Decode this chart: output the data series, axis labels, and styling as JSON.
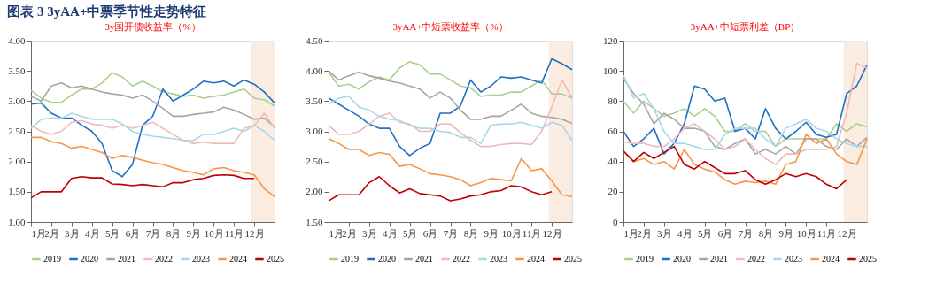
{
  "chart_data": [
    {
      "type": "other",
      "title": "图表 3  3yAA+中票季节性走势特征"
    },
    {
      "type": "line",
      "title": "3y国开债收益率（%）",
      "legend": "bottom",
      "grid": false,
      "x": [
        1,
        1.5,
        2,
        2.5,
        3,
        3.5,
        4,
        4.5,
        5,
        5.5,
        6,
        6.5,
        7,
        7.5,
        8,
        8.5,
        9,
        9.5,
        10,
        10.5,
        11,
        11.5,
        12,
        12.5,
        13
      ],
      "xlim": [
        1,
        13
      ],
      "xticks": [
        {
          "value": 1,
          "label": "1月"
        },
        {
          "value": 2,
          "label": "2月"
        },
        {
          "value": 3,
          "label": "3月"
        },
        {
          "value": 4,
          "label": "4月"
        },
        {
          "value": 5,
          "label": "5月"
        },
        {
          "value": 6,
          "label": "6月"
        },
        {
          "value": 7,
          "label": "7月"
        },
        {
          "value": 8,
          "label": "8月"
        },
        {
          "value": 9,
          "label": "9月"
        },
        {
          "value": 10,
          "label": "10月"
        },
        {
          "value": 11,
          "label": "11月"
        },
        {
          "value": 12,
          "label": "12月"
        }
      ],
      "ylim": [
        1,
        4
      ],
      "yticks": [
        {
          "value": 1,
          "label": "1.00"
        },
        {
          "value": 1.5,
          "label": "1.50"
        },
        {
          "value": 2,
          "label": "2.00"
        },
        {
          "value": 2.5,
          "label": "2.50"
        },
        {
          "value": 3,
          "label": "3.00"
        },
        {
          "value": 3.5,
          "label": "3.50"
        },
        {
          "value": 4,
          "label": "4.00"
        }
      ],
      "bands": [
        {
          "axis": "x",
          "from": 11.85,
          "to": 13,
          "color": "#fbeadf"
        }
      ],
      "series": [
        {
          "name": "2019",
          "color": "#a9d18e",
          "values": [
            3.18,
            3.05,
            2.98,
            2.98,
            3.1,
            3.2,
            3.2,
            3.3,
            3.47,
            3.4,
            3.25,
            3.33,
            3.25,
            3.15,
            3.12,
            3.08,
            3.1,
            3.05,
            3.08,
            3.1,
            3.15,
            3.2,
            3.05,
            3.02,
            2.92
          ]
        },
        {
          "name": "2020",
          "color": "#1f6fc5",
          "values": [
            2.95,
            2.97,
            2.8,
            2.72,
            2.72,
            2.6,
            2.5,
            2.3,
            1.85,
            1.75,
            1.95,
            2.6,
            2.75,
            3.2,
            3.0,
            3.1,
            3.2,
            3.33,
            3.3,
            3.33,
            3.25,
            3.35,
            3.28,
            3.15,
            2.97
          ]
        },
        {
          "name": "2021",
          "color": "#a5a5a5",
          "values": [
            3.08,
            3.0,
            3.25,
            3.3,
            3.22,
            3.25,
            3.2,
            3.15,
            3.12,
            3.1,
            3.05,
            3.1,
            3.0,
            2.88,
            2.75,
            2.75,
            2.78,
            2.8,
            2.82,
            2.9,
            2.85,
            2.78,
            2.7,
            2.72,
            2.57
          ]
        },
        {
          "name": "2022",
          "color": "#f0b8b8",
          "values": [
            2.6,
            2.5,
            2.45,
            2.5,
            2.65,
            2.68,
            2.62,
            2.6,
            2.55,
            2.6,
            2.55,
            2.6,
            2.65,
            2.55,
            2.45,
            2.35,
            2.3,
            2.32,
            2.3,
            2.3,
            2.3,
            2.55,
            2.6,
            2.8,
            2.55
          ]
        },
        {
          "name": "2023",
          "color": "#a8d8e8",
          "values": [
            2.55,
            2.7,
            2.72,
            2.72,
            2.8,
            2.75,
            2.7,
            2.7,
            2.7,
            2.62,
            2.5,
            2.45,
            2.42,
            2.4,
            2.38,
            2.35,
            2.35,
            2.45,
            2.45,
            2.5,
            2.55,
            2.5,
            2.6,
            2.5,
            2.35
          ]
        },
        {
          "name": "2024",
          "color": "#f79646",
          "values": [
            2.4,
            2.4,
            2.33,
            2.3,
            2.22,
            2.25,
            2.2,
            2.15,
            2.05,
            2.1,
            2.07,
            2.02,
            1.98,
            1.95,
            1.9,
            1.85,
            1.82,
            1.78,
            1.88,
            1.9,
            1.85,
            1.82,
            1.78,
            1.55,
            1.42
          ]
        },
        {
          "name": "2025",
          "color": "#c00000",
          "values": [
            1.4,
            1.5,
            1.5,
            1.5,
            1.72,
            1.75,
            1.73,
            1.73,
            1.63,
            1.62,
            1.6,
            1.62,
            1.6,
            1.58,
            1.65,
            1.65,
            1.7,
            1.72,
            1.77,
            1.78,
            1.77,
            1.72,
            1.72,
            null,
            null
          ]
        }
      ]
    },
    {
      "type": "line",
      "title": "3yAA+中短票收益率（%）",
      "legend": "bottom",
      "grid": false,
      "x": [
        1,
        1.5,
        2,
        2.5,
        3,
        3.5,
        4,
        4.5,
        5,
        5.5,
        6,
        6.5,
        7,
        7.5,
        8,
        8.5,
        9,
        9.5,
        10,
        10.5,
        11,
        11.5,
        12,
        12.5,
        13
      ],
      "xlim": [
        1,
        13
      ],
      "xticks": [
        {
          "value": 1,
          "label": "1月"
        },
        {
          "value": 2,
          "label": "2月"
        },
        {
          "value": 3,
          "label": "3月"
        },
        {
          "value": 4,
          "label": "4月"
        },
        {
          "value": 5,
          "label": "5月"
        },
        {
          "value": 6,
          "label": "6月"
        },
        {
          "value": 7,
          "label": "7月"
        },
        {
          "value": 8,
          "label": "8月"
        },
        {
          "value": 9,
          "label": "9月"
        },
        {
          "value": 10,
          "label": "10月"
        },
        {
          "value": 11,
          "label": "11月"
        },
        {
          "value": 12,
          "label": "12月"
        }
      ],
      "ylim": [
        1.5,
        4.5
      ],
      "yticks": [
        {
          "value": 1.5,
          "label": "1.50"
        },
        {
          "value": 2,
          "label": "2.00"
        },
        {
          "value": 2.5,
          "label": "2.50"
        },
        {
          "value": 3,
          "label": "3.00"
        },
        {
          "value": 3.5,
          "label": "3.50"
        },
        {
          "value": 4,
          "label": "4.00"
        },
        {
          "value": 4.5,
          "label": "4.50"
        }
      ],
      "bands": [
        {
          "axis": "x",
          "from": 11.85,
          "to": 13,
          "color": "#fbeadf"
        }
      ],
      "series": [
        {
          "name": "2019",
          "color": "#a9d18e",
          "values": [
            3.98,
            3.75,
            3.78,
            3.7,
            3.82,
            3.9,
            3.85,
            4.05,
            4.15,
            4.1,
            3.95,
            3.95,
            3.85,
            3.75,
            3.72,
            3.58,
            3.6,
            3.6,
            3.65,
            3.65,
            3.75,
            3.85,
            3.62,
            3.62,
            3.55
          ]
        },
        {
          "name": "2020",
          "color": "#1f6fc5",
          "values": [
            3.55,
            3.45,
            3.35,
            3.25,
            3.12,
            3.05,
            3.05,
            2.75,
            2.6,
            2.72,
            2.8,
            3.3,
            3.3,
            3.42,
            3.85,
            3.65,
            3.75,
            3.9,
            3.88,
            3.9,
            3.85,
            3.8,
            4.2,
            4.12,
            4.02
          ]
        },
        {
          "name": "2021",
          "color": "#a5a5a5",
          "values": [
            4.0,
            3.85,
            3.92,
            3.98,
            3.92,
            3.88,
            3.83,
            3.8,
            3.75,
            3.7,
            3.55,
            3.65,
            3.55,
            3.35,
            3.2,
            3.2,
            3.25,
            3.25,
            3.35,
            3.45,
            3.3,
            3.25,
            3.23,
            3.2,
            3.13
          ]
        },
        {
          "name": "2022",
          "color": "#f0b8b8",
          "values": [
            3.1,
            2.95,
            2.95,
            3.0,
            3.12,
            3.25,
            3.3,
            3.15,
            3.12,
            3.0,
            3.0,
            3.12,
            3.12,
            2.98,
            2.85,
            2.75,
            2.75,
            2.78,
            2.8,
            2.8,
            2.78,
            3.0,
            3.4,
            3.85,
            3.55
          ]
        },
        {
          "name": "2023",
          "color": "#a8d8e8",
          "values": [
            3.45,
            3.55,
            3.58,
            3.4,
            3.35,
            3.25,
            3.2,
            3.18,
            3.1,
            3.05,
            3.05,
            3.0,
            2.98,
            2.9,
            2.9,
            2.8,
            3.1,
            3.12,
            3.12,
            3.15,
            3.1,
            3.05,
            3.15,
            3.1,
            2.85
          ]
        },
        {
          "name": "2024",
          "color": "#f79646",
          "values": [
            2.88,
            2.8,
            2.7,
            2.7,
            2.6,
            2.65,
            2.62,
            2.42,
            2.45,
            2.38,
            2.3,
            2.28,
            2.25,
            2.2,
            2.1,
            2.15,
            2.22,
            2.2,
            2.18,
            2.55,
            2.35,
            2.38,
            2.18,
            1.95,
            1.92
          ]
        },
        {
          "name": "2025",
          "color": "#c00000",
          "values": [
            1.85,
            1.95,
            1.95,
            1.95,
            2.15,
            2.25,
            2.1,
            1.98,
            2.05,
            1.97,
            1.95,
            1.93,
            1.85,
            1.88,
            1.93,
            1.95,
            2.0,
            2.02,
            2.1,
            2.08,
            2.0,
            1.95,
            2.0,
            null,
            null
          ]
        }
      ]
    },
    {
      "type": "line",
      "title": "3yAA+中短票利差（BP）",
      "legend": "bottom",
      "grid": false,
      "x": [
        1,
        1.5,
        2,
        2.5,
        3,
        3.5,
        4,
        4.5,
        5,
        5.5,
        6,
        6.5,
        7,
        7.5,
        8,
        8.5,
        9,
        9.5,
        10,
        10.5,
        11,
        11.5,
        12,
        12.5,
        13
      ],
      "xlim": [
        1,
        13
      ],
      "xticks": [
        {
          "value": 1,
          "label": "1月"
        },
        {
          "value": 2,
          "label": "2月"
        },
        {
          "value": 3,
          "label": "3月"
        },
        {
          "value": 4,
          "label": "4月"
        },
        {
          "value": 5,
          "label": "5月"
        },
        {
          "value": 6,
          "label": "6月"
        },
        {
          "value": 7,
          "label": "7月"
        },
        {
          "value": 8,
          "label": "8月"
        },
        {
          "value": 9,
          "label": "9月"
        },
        {
          "value": 10,
          "label": "10月"
        },
        {
          "value": 11,
          "label": "11月"
        },
        {
          "value": 12,
          "label": "12月"
        }
      ],
      "ylim": [
        0,
        120
      ],
      "yticks": [
        0,
        20,
        40,
        60,
        80,
        100,
        120
      ],
      "bands": [
        {
          "axis": "x",
          "from": 11.85,
          "to": 13,
          "color": "#fbeadf"
        }
      ],
      "series": [
        {
          "name": "2019",
          "color": "#a9d18e",
          "values": [
            80,
            72,
            80,
            75,
            70,
            72,
            75,
            70,
            75,
            70,
            60,
            60,
            65,
            60,
            60,
            50,
            55,
            55,
            55,
            55,
            55,
            65,
            60,
            65,
            63
          ]
        },
        {
          "name": "2020",
          "color": "#1f6fc5",
          "values": [
            60,
            50,
            55,
            62,
            45,
            52,
            65,
            90,
            88,
            80,
            82,
            60,
            62,
            55,
            75,
            62,
            55,
            60,
            66,
            58,
            56,
            58,
            85,
            90,
            104
          ]
        },
        {
          "name": "2021",
          "color": "#a5a5a5",
          "values": [
            95,
            85,
            78,
            65,
            72,
            68,
            62,
            62,
            60,
            50,
            48,
            52,
            55,
            45,
            48,
            45,
            50,
            45,
            55,
            55,
            50,
            48,
            55,
            50,
            56
          ]
        },
        {
          "name": "2022",
          "color": "#f0b8b8",
          "values": [
            53,
            52,
            52,
            50,
            50,
            55,
            62,
            65,
            60,
            55,
            48,
            50,
            55,
            48,
            42,
            38,
            45,
            45,
            48,
            48,
            48,
            50,
            72,
            105,
            102
          ]
        },
        {
          "name": "2023",
          "color": "#a8d8e8",
          "values": [
            97,
            82,
            85,
            75,
            60,
            52,
            52,
            50,
            48,
            48,
            58,
            62,
            62,
            62,
            55,
            50,
            62,
            65,
            68,
            62,
            60,
            55,
            52,
            50,
            50
          ]
        },
        {
          "name": "2024",
          "color": "#f79646",
          "values": [
            47,
            40,
            42,
            38,
            40,
            35,
            48,
            38,
            35,
            33,
            28,
            25,
            27,
            26,
            27,
            25,
            38,
            40,
            58,
            52,
            55,
            45,
            40,
            38,
            55
          ]
        },
        {
          "name": "2025",
          "color": "#c00000",
          "values": [
            47,
            40,
            46,
            42,
            46,
            50,
            38,
            35,
            40,
            36,
            32,
            32,
            34,
            28,
            25,
            28,
            32,
            30,
            32,
            30,
            25,
            22,
            28,
            null,
            null
          ]
        }
      ]
    }
  ]
}
